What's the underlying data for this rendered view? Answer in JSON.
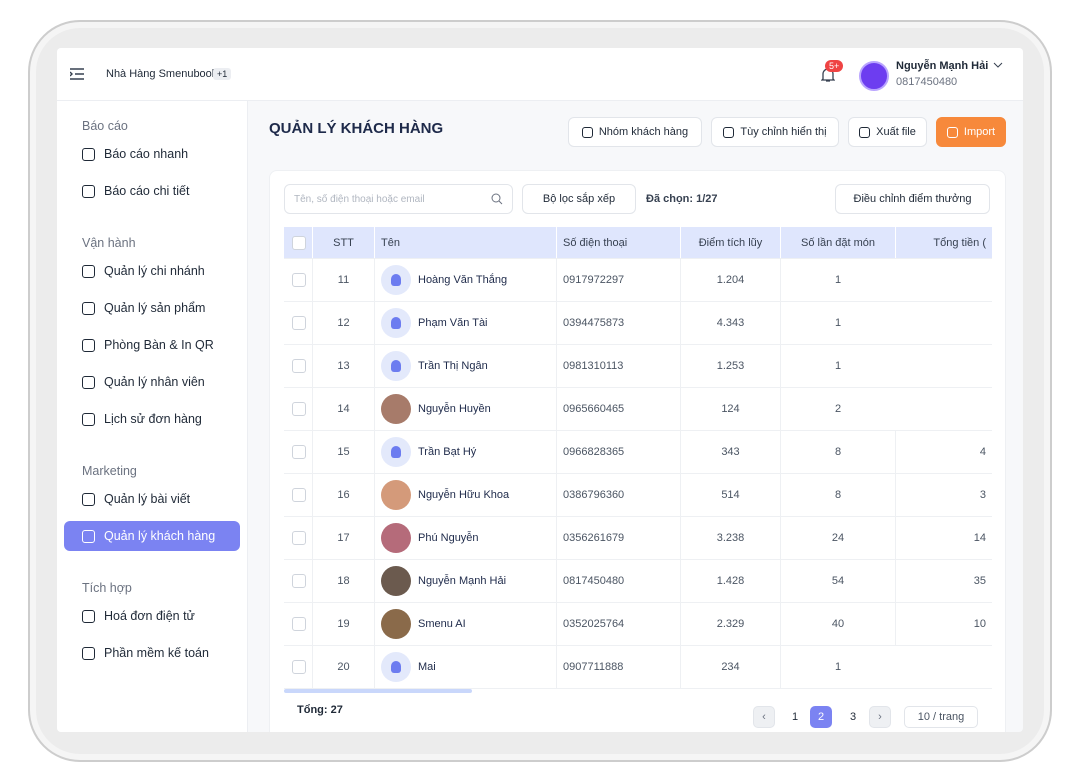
{
  "header": {
    "store": "Nhà Hàng Smenubook",
    "store_badge": "+1",
    "notification_badge": "5+",
    "user_name": "Nguyễn Mạnh Hải",
    "user_phone": "0817450480"
  },
  "sidebar": {
    "sections": [
      {
        "title": "Báo cáo",
        "items": [
          "Báo cáo nhanh",
          "Báo cáo chi tiết"
        ]
      },
      {
        "title": "Vận hành",
        "items": [
          "Quản lý chi nhánh",
          "Quản lý sản phẩm",
          "Phòng Bàn & In QR",
          "Quản lý nhân viên",
          "Lịch sử đơn hàng"
        ]
      },
      {
        "title": "Marketing",
        "items": [
          "Quản lý bài viết",
          "Quản lý khách hàng"
        ]
      },
      {
        "title": "Tích hợp",
        "items": [
          "Hoá đơn điện tử",
          "Phần mềm kế toán"
        ]
      }
    ]
  },
  "page": {
    "title": "QUẢN LÝ KHÁCH HÀNG",
    "buttons": [
      "Nhóm khách hàng",
      "Tùy chỉnh hiển thị",
      "Xuất file",
      "Import"
    ]
  },
  "toolbar": {
    "search_placeholder": "Tên, số điện thoại hoặc email",
    "filter": "Bộ lọc sắp xếp",
    "selected": "Đã chọn: 1/27",
    "adjust": "Điều chỉnh điểm thưởng"
  },
  "table": {
    "columns": [
      "STT",
      "Tên",
      "Số điện thoại",
      "Điểm tích lũy",
      "Số lần đặt món",
      "Tổng tiền ("
    ],
    "rows": [
      [
        11,
        "Hoàng Văn Thắng",
        "0917972297",
        "1.204",
        1,
        null
      ],
      [
        12,
        "Phạm Văn Tài",
        "0394475873",
        "4.343",
        1,
        null
      ],
      [
        13,
        "Trần Thị Ngân",
        "0981310113",
        "1.253",
        1,
        null
      ],
      [
        14,
        "Nguyễn Huyền",
        "0965660465",
        "124",
        2,
        null
      ],
      [
        15,
        "Trần Bạt Hý",
        "0966828365",
        "343",
        8,
        "4"
      ],
      [
        16,
        "Nguyễn Hữu Khoa",
        "0386796360",
        "514",
        8,
        "3"
      ],
      [
        17,
        "Phú Nguyễn",
        "0356261679",
        "3.238",
        24,
        "14"
      ],
      [
        18,
        "Nguyễn Mạnh Hải",
        "0817450480",
        "1.428",
        54,
        "35"
      ],
      [
        19,
        "Smenu AI",
        "0352025764",
        "2.329",
        40,
        "10"
      ],
      [
        20,
        "Mai",
        "0907711888",
        "234",
        1,
        null
      ]
    ]
  },
  "footer": {
    "total": "Tổng: 27",
    "pages": [
      "1",
      "2",
      "3"
    ],
    "page_size": "10 / trang"
  }
}
